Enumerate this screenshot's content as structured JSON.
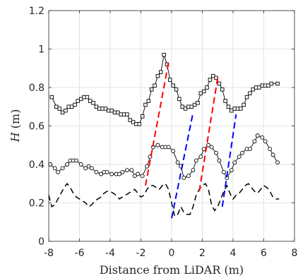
{
  "chart_data": {
    "type": "line",
    "xlabel": "Distance from LiDAR (m)",
    "ylabel_var": "H",
    "ylabel_unit": "(m)",
    "xlim": [
      -8,
      8
    ],
    "ylim": [
      0,
      1.2
    ],
    "xticks": [
      -8,
      -6,
      -4,
      -2,
      0,
      2,
      4,
      6,
      8
    ],
    "yticks": [
      0,
      0.2,
      0.4,
      0.6,
      0.8,
      1,
      1.2
    ],
    "xtick_labels": [
      "-8",
      "-6",
      "-4",
      "-2",
      "0",
      "2",
      "4",
      "6",
      "8"
    ],
    "ytick_labels": [
      "0",
      "0.2",
      "0.4",
      "0.6",
      "0.8",
      "1",
      "1.2"
    ],
    "grid": true,
    "series": [
      {
        "style": "solid",
        "marker": "square",
        "color": "#000000",
        "x": [
          -7.8,
          -7.5,
          -7.3,
          -7.1,
          -6.9,
          -6.7,
          -6.5,
          -6.3,
          -6.1,
          -5.9,
          -5.7,
          -5.5,
          -5.3,
          -5.1,
          -4.9,
          -4.7,
          -4.5,
          -4.3,
          -4.1,
          -3.9,
          -3.7,
          -3.5,
          -3.3,
          -3.1,
          -2.9,
          -2.7,
          -2.5,
          -2.3,
          -2.1,
          -1.9,
          -1.7,
          -1.5,
          -1.3,
          -1.1,
          -0.9,
          -0.7,
          -0.5,
          -0.3,
          -0.1,
          0.1,
          0.3,
          0.5,
          0.7,
          0.9,
          1.1,
          1.3,
          1.5,
          1.7,
          1.9,
          2.1,
          2.3,
          2.5,
          2.7,
          2.9,
          3.1,
          3.3,
          3.5,
          3.7,
          3.9,
          4.1,
          4.3,
          4.5,
          4.7,
          4.9,
          5.1,
          5.3,
          5.5,
          5.7,
          5.9,
          6.1,
          6.3,
          6.5,
          6.9
        ],
        "y": [
          0.75,
          0.7,
          0.69,
          0.67,
          0.68,
          0.7,
          0.7,
          0.71,
          0.73,
          0.74,
          0.75,
          0.75,
          0.73,
          0.72,
          0.7,
          0.69,
          0.69,
          0.69,
          0.68,
          0.68,
          0.67,
          0.67,
          0.66,
          0.66,
          0.66,
          0.63,
          0.62,
          0.61,
          0.61,
          0.65,
          0.71,
          0.73,
          0.79,
          0.81,
          0.86,
          0.88,
          0.97,
          0.92,
          0.84,
          0.81,
          0.79,
          0.74,
          0.7,
          0.69,
          0.7,
          0.7,
          0.71,
          0.72,
          0.77,
          0.78,
          0.8,
          0.84,
          0.86,
          0.85,
          0.82,
          0.79,
          0.73,
          0.7,
          0.68,
          0.69,
          0.69,
          0.69,
          0.71,
          0.75,
          0.77,
          0.79,
          0.8,
          0.8,
          0.81,
          0.81,
          0.81,
          0.82,
          0.82
        ]
      },
      {
        "style": "solid",
        "marker": "circle",
        "color": "#000000",
        "x": [
          -7.9,
          -7.6,
          -7.4,
          -7.1,
          -6.8,
          -6.6,
          -6.4,
          -6.2,
          -5.9,
          -5.6,
          -5.4,
          -5.2,
          -4.9,
          -4.6,
          -4.4,
          -4.2,
          -3.9,
          -3.6,
          -3.4,
          -3.2,
          -2.9,
          -2.6,
          -2.4,
          -2.2,
          -1.9,
          -1.6,
          -1.4,
          -1.2,
          -0.9,
          -0.6,
          -0.4,
          -0.2,
          0.1,
          0.4,
          0.6,
          0.8,
          1.1,
          1.4,
          1.6,
          1.9,
          2.1,
          2.4,
          2.6,
          2.9,
          3.1,
          3.4,
          3.6,
          3.9,
          4.1,
          4.4,
          4.6,
          4.9,
          5.1,
          5.4,
          5.6,
          5.9,
          6.1,
          6.4,
          6.6,
          6.9
        ],
        "y": [
          0.4,
          0.38,
          0.36,
          0.38,
          0.4,
          0.42,
          0.42,
          0.42,
          0.4,
          0.38,
          0.39,
          0.38,
          0.36,
          0.35,
          0.36,
          0.36,
          0.35,
          0.35,
          0.35,
          0.36,
          0.37,
          0.37,
          0.34,
          0.35,
          0.34,
          0.39,
          0.44,
          0.49,
          0.5,
          0.49,
          0.49,
          0.49,
          0.47,
          0.41,
          0.39,
          0.33,
          0.34,
          0.37,
          0.42,
          0.44,
          0.48,
          0.5,
          0.49,
          0.46,
          0.42,
          0.36,
          0.33,
          0.37,
          0.41,
          0.44,
          0.46,
          0.48,
          0.48,
          0.52,
          0.55,
          0.54,
          0.52,
          0.48,
          0.45,
          0.41
        ]
      },
      {
        "style": "dashed",
        "marker": "none",
        "color": "#000000",
        "x": [
          -8.0,
          -7.8,
          -7.6,
          -7.4,
          -7.2,
          -7.0,
          -6.8,
          -6.6,
          -6.4,
          -6.2,
          -6.0,
          -5.8,
          -5.6,
          -5.4,
          -5.2,
          -5.0,
          -4.8,
          -4.6,
          -4.4,
          -4.2,
          -4.0,
          -3.8,
          -3.6,
          -3.4,
          -3.2,
          -3.0,
          -2.8,
          -2.6,
          -2.4,
          -2.2,
          -2.0,
          -1.8,
          -1.6,
          -1.4,
          -1.2,
          -1.0,
          -0.8,
          -0.6,
          -0.4,
          -0.2,
          0.0,
          0.2,
          0.4,
          0.6,
          0.8,
          1.0,
          1.2,
          1.4,
          1.6,
          1.8,
          2.0,
          2.2,
          2.4,
          2.6,
          2.8,
          3.0,
          3.2,
          3.4,
          3.6,
          3.8,
          4.0,
          4.2,
          4.4,
          4.6,
          4.8,
          5.0,
          5.2,
          5.4,
          5.6,
          5.8,
          6.0,
          6.2,
          6.4,
          6.6,
          6.8,
          7.0
        ],
        "y": [
          0.24,
          0.18,
          0.19,
          0.22,
          0.25,
          0.28,
          0.3,
          0.28,
          0.25,
          0.23,
          0.22,
          0.21,
          0.2,
          0.18,
          0.19,
          0.21,
          0.22,
          0.23,
          0.25,
          0.26,
          0.26,
          0.25,
          0.24,
          0.22,
          0.23,
          0.24,
          0.25,
          0.26,
          0.27,
          0.25,
          0.23,
          0.24,
          0.27,
          0.29,
          0.29,
          0.28,
          0.27,
          0.29,
          0.3,
          0.27,
          0.2,
          0.13,
          0.14,
          0.18,
          0.15,
          0.14,
          0.14,
          0.18,
          0.24,
          0.27,
          0.29,
          0.3,
          0.27,
          0.19,
          0.16,
          0.18,
          0.22,
          0.26,
          0.29,
          0.25,
          0.22,
          0.24,
          0.25,
          0.27,
          0.29,
          0.3,
          0.28,
          0.26,
          0.25,
          0.27,
          0.29,
          0.28,
          0.26,
          0.23,
          0.22,
          0.22
        ]
      }
    ],
    "segments": [
      {
        "color": "#ff0000",
        "from": [
          -1.7,
          0.29
        ],
        "to": [
          -0.2,
          0.93
        ]
      },
      {
        "color": "#ff0000",
        "from": [
          1.8,
          0.26
        ],
        "to": [
          3.0,
          0.85
        ]
      },
      {
        "color": "#0000ff",
        "from": [
          0.0,
          0.12
        ],
        "to": [
          1.4,
          0.67
        ]
      },
      {
        "color": "#0000ff",
        "from": [
          3.3,
          0.18
        ],
        "to": [
          4.2,
          0.66
        ]
      }
    ]
  }
}
